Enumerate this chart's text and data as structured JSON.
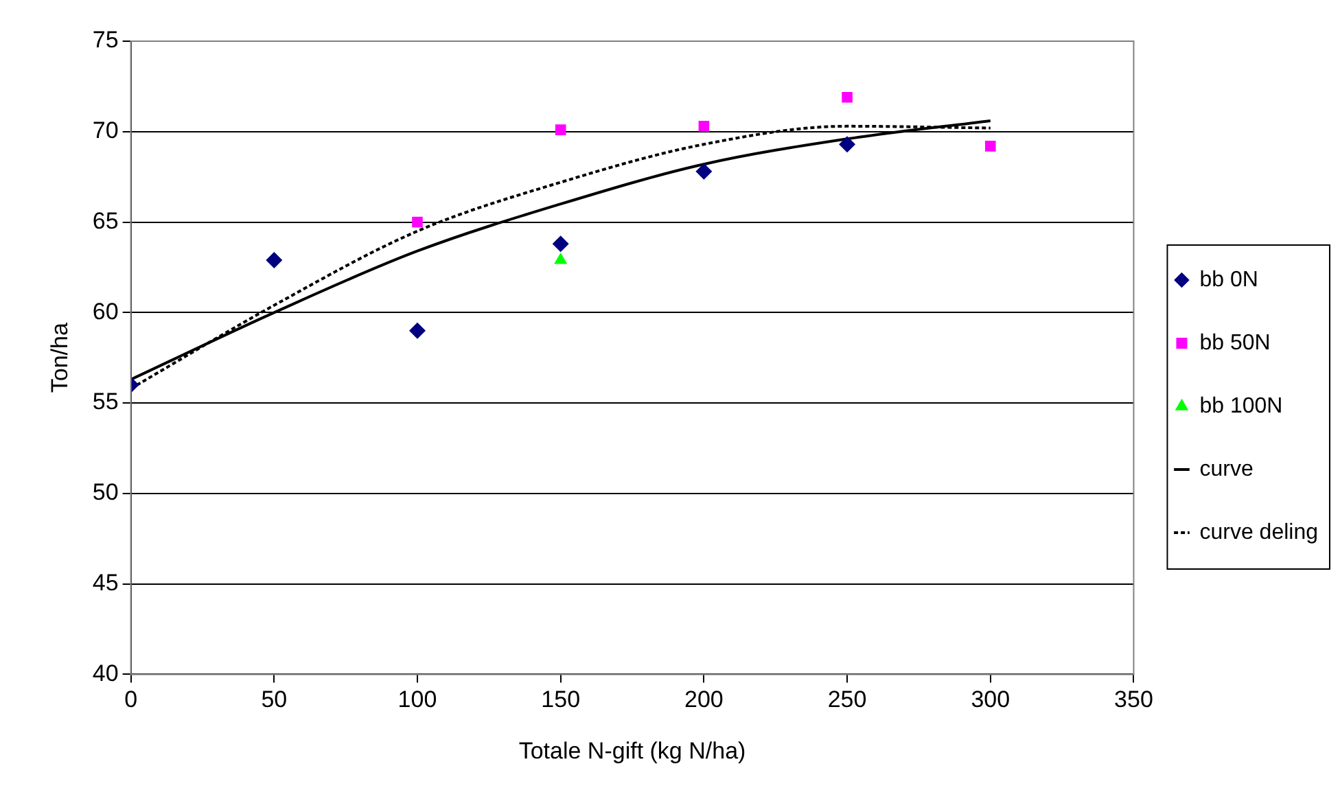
{
  "chart_data": {
    "type": "scatter",
    "xlabel": "Totale N-gift (kg N/ha)",
    "ylabel": "Ton/ha",
    "xlim": [
      0,
      350
    ],
    "xticks": [
      0,
      50,
      100,
      150,
      200,
      250,
      300,
      350
    ],
    "ylim": [
      40,
      75
    ],
    "yticks": [
      40,
      45,
      50,
      55,
      60,
      65,
      70,
      75
    ],
    "grid": "y",
    "legend": "right",
    "series": [
      {
        "name": "bb 0N",
        "marker": "diamond",
        "color": "#000080",
        "x": [
          0,
          50,
          100,
          150,
          200,
          250
        ],
        "values": [
          56.0,
          62.9,
          59.0,
          63.8,
          67.8,
          69.3
        ]
      },
      {
        "name": "bb 50N",
        "marker": "square",
        "color": "#ff00ff",
        "x": [
          100,
          150,
          200,
          250,
          300
        ],
        "values": [
          65.0,
          70.1,
          70.3,
          71.9,
          69.2
        ]
      },
      {
        "name": "bb 100N",
        "marker": "triangle",
        "color": "#00ff00",
        "x": [
          150
        ],
        "values": [
          62.9
        ]
      },
      {
        "name": "curve",
        "type": "line",
        "marker": "none",
        "line_style": "solid",
        "color": "#000000",
        "x": [
          0,
          50,
          100,
          150,
          200,
          250,
          300
        ],
        "values": [
          56.3,
          60.0,
          63.4,
          66.0,
          68.2,
          69.6,
          70.6
        ]
      },
      {
        "name": "curve deling",
        "type": "line",
        "marker": "none",
        "line_style": "dashed",
        "color": "#000000",
        "x": [
          0,
          50,
          100,
          150,
          200,
          250,
          300
        ],
        "values": [
          55.8,
          60.4,
          64.5,
          67.2,
          69.3,
          70.3,
          70.2
        ]
      }
    ]
  }
}
